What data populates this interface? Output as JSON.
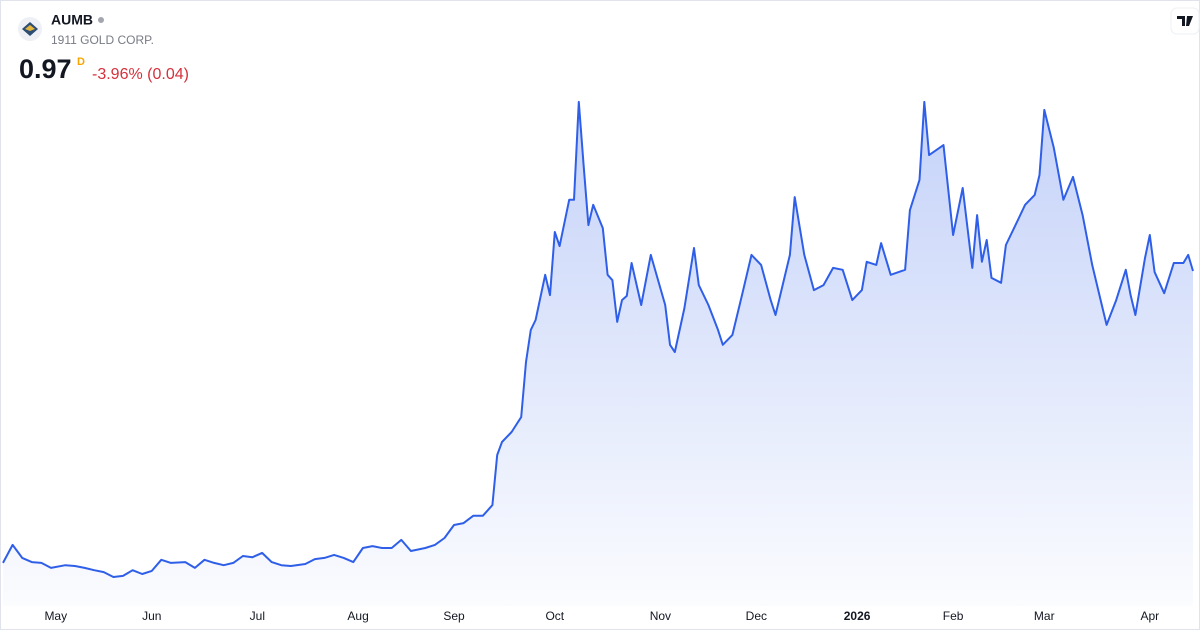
{
  "chart_data": {
    "type": "area",
    "title": "AUMB",
    "subtitle": "1911 GOLD CORP.",
    "price": "0.97",
    "interval": "D",
    "change": "-3.96% (0.04)",
    "color": "#2f5fe8",
    "x": [
      0,
      2,
      4,
      6,
      8,
      10,
      13,
      15,
      17,
      19,
      21,
      23,
      25,
      27,
      29,
      31,
      33,
      35,
      38,
      40,
      42,
      44,
      46,
      48,
      50,
      52,
      54,
      56,
      58,
      60,
      63,
      65,
      67,
      69,
      71,
      73,
      75,
      77,
      79,
      81,
      83,
      85,
      88,
      90,
      92,
      94,
      96,
      98,
      100,
      102,
      103,
      104,
      106,
      108,
      109,
      110,
      111,
      113,
      114,
      115,
      116,
      118,
      119,
      120,
      121,
      122,
      123,
      125,
      126,
      127,
      128,
      129,
      130,
      131,
      133,
      135,
      138,
      139,
      140,
      142,
      144,
      145,
      147,
      149,
      150,
      152,
      154,
      156,
      158,
      160,
      161,
      164,
      165,
      167,
      169,
      171,
      173,
      175,
      177,
      179,
      180,
      182,
      183,
      185,
      188,
      189,
      191,
      192,
      193,
      196,
      198,
      200,
      202,
      203,
      204,
      205,
      206,
      208,
      209,
      211,
      213,
      215,
      216,
      217,
      219,
      221,
      223,
      225,
      227,
      229,
      230,
      232,
      234,
      235,
      236,
      238,
      239,
      240,
      242,
      244,
      246,
      247,
      248
    ],
    "values": [
      0.207,
      0.254,
      0.22,
      0.209,
      0.207,
      0.194,
      0.201,
      0.199,
      0.194,
      0.188,
      0.183,
      0.17,
      0.173,
      0.188,
      0.178,
      0.186,
      0.215,
      0.207,
      0.209,
      0.194,
      0.215,
      0.207,
      0.201,
      0.207,
      0.225,
      0.222,
      0.233,
      0.209,
      0.201,
      0.199,
      0.204,
      0.217,
      0.22,
      0.228,
      0.22,
      0.209,
      0.246,
      0.251,
      0.246,
      0.246,
      0.267,
      0.238,
      0.246,
      0.254,
      0.272,
      0.306,
      0.311,
      0.33,
      0.33,
      0.358,
      0.489,
      0.523,
      0.549,
      0.588,
      0.732,
      0.816,
      0.842,
      0.96,
      0.907,
      1.072,
      1.035,
      1.156,
      1.156,
      1.412,
      1.247,
      1.09,
      1.143,
      1.082,
      0.96,
      0.946,
      0.837,
      0.894,
      0.905,
      0.991,
      0.881,
      1.012,
      0.881,
      0.777,
      0.758,
      0.873,
      1.03,
      0.933,
      0.881,
      0.816,
      0.777,
      0.803,
      0.907,
      1.012,
      0.986,
      0.894,
      0.855,
      1.012,
      1.163,
      1.012,
      0.92,
      0.933,
      0.978,
      0.973,
      0.894,
      0.92,
      0.994,
      0.986,
      1.043,
      0.96,
      0.973,
      1.129,
      1.208,
      1.412,
      1.273,
      1.299,
      1.064,
      1.187,
      0.978,
      1.116,
      0.994,
      1.051,
      0.952,
      0.939,
      1.038,
      1.09,
      1.143,
      1.169,
      1.221,
      1.391,
      1.292,
      1.156,
      1.216,
      1.116,
      0.986,
      0.881,
      0.829,
      0.894,
      0.973,
      0.907,
      0.855,
      1.004,
      1.064,
      0.967,
      0.912,
      0.991,
      0.991,
      1.012,
      0.97
    ],
    "xlim": [
      0,
      248
    ],
    "ylim": [
      0.11,
      1.43
    ],
    "xticks": [
      {
        "value": 11,
        "label": "May"
      },
      {
        "value": 31,
        "label": "Jun"
      },
      {
        "value": 53,
        "label": "Jul"
      },
      {
        "value": 74,
        "label": "Aug"
      },
      {
        "value": 94,
        "label": "Sep"
      },
      {
        "value": 115,
        "label": "Oct"
      },
      {
        "value": 137,
        "label": "Nov"
      },
      {
        "value": 157,
        "label": "Dec"
      },
      {
        "value": 178,
        "label": "2026"
      },
      {
        "value": 198,
        "label": "Feb"
      },
      {
        "value": 217,
        "label": "Mar"
      },
      {
        "value": 239,
        "label": "Apr"
      }
    ]
  }
}
